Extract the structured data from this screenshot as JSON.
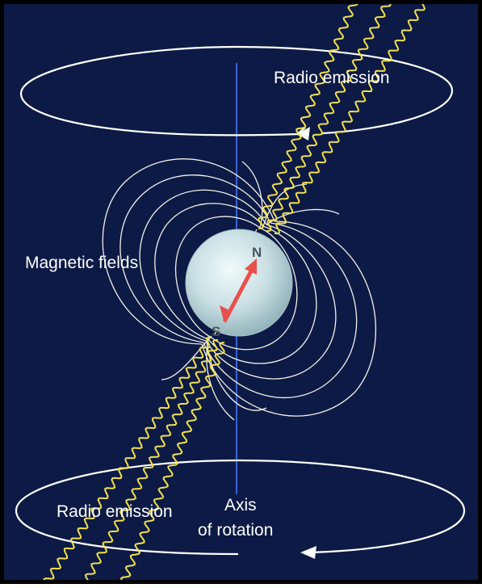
{
  "labels": {
    "radio_emission_top": "Radio emission",
    "radio_emission_bottom": "Radio emission",
    "magnetic_fields": "Magnetic fields",
    "axis_line1": "Axis",
    "axis_line2": "of rotation",
    "north_pole": "N",
    "south_pole": "S"
  },
  "colors": {
    "background": "#0c1a45",
    "frame": "#000000",
    "rotation_axis": "#3b63d9",
    "radio_waves": "#f2e04a",
    "field_lines": "#f3f1ea",
    "orbit_rings": "#ffffff",
    "star": "#c9dfe4",
    "magnetic_axis_arrow": "#e8504c"
  },
  "icons": [
    "orbit-arrow-icon",
    "magnetic-axis-arrow-icon",
    "radio-wave-icon"
  ]
}
